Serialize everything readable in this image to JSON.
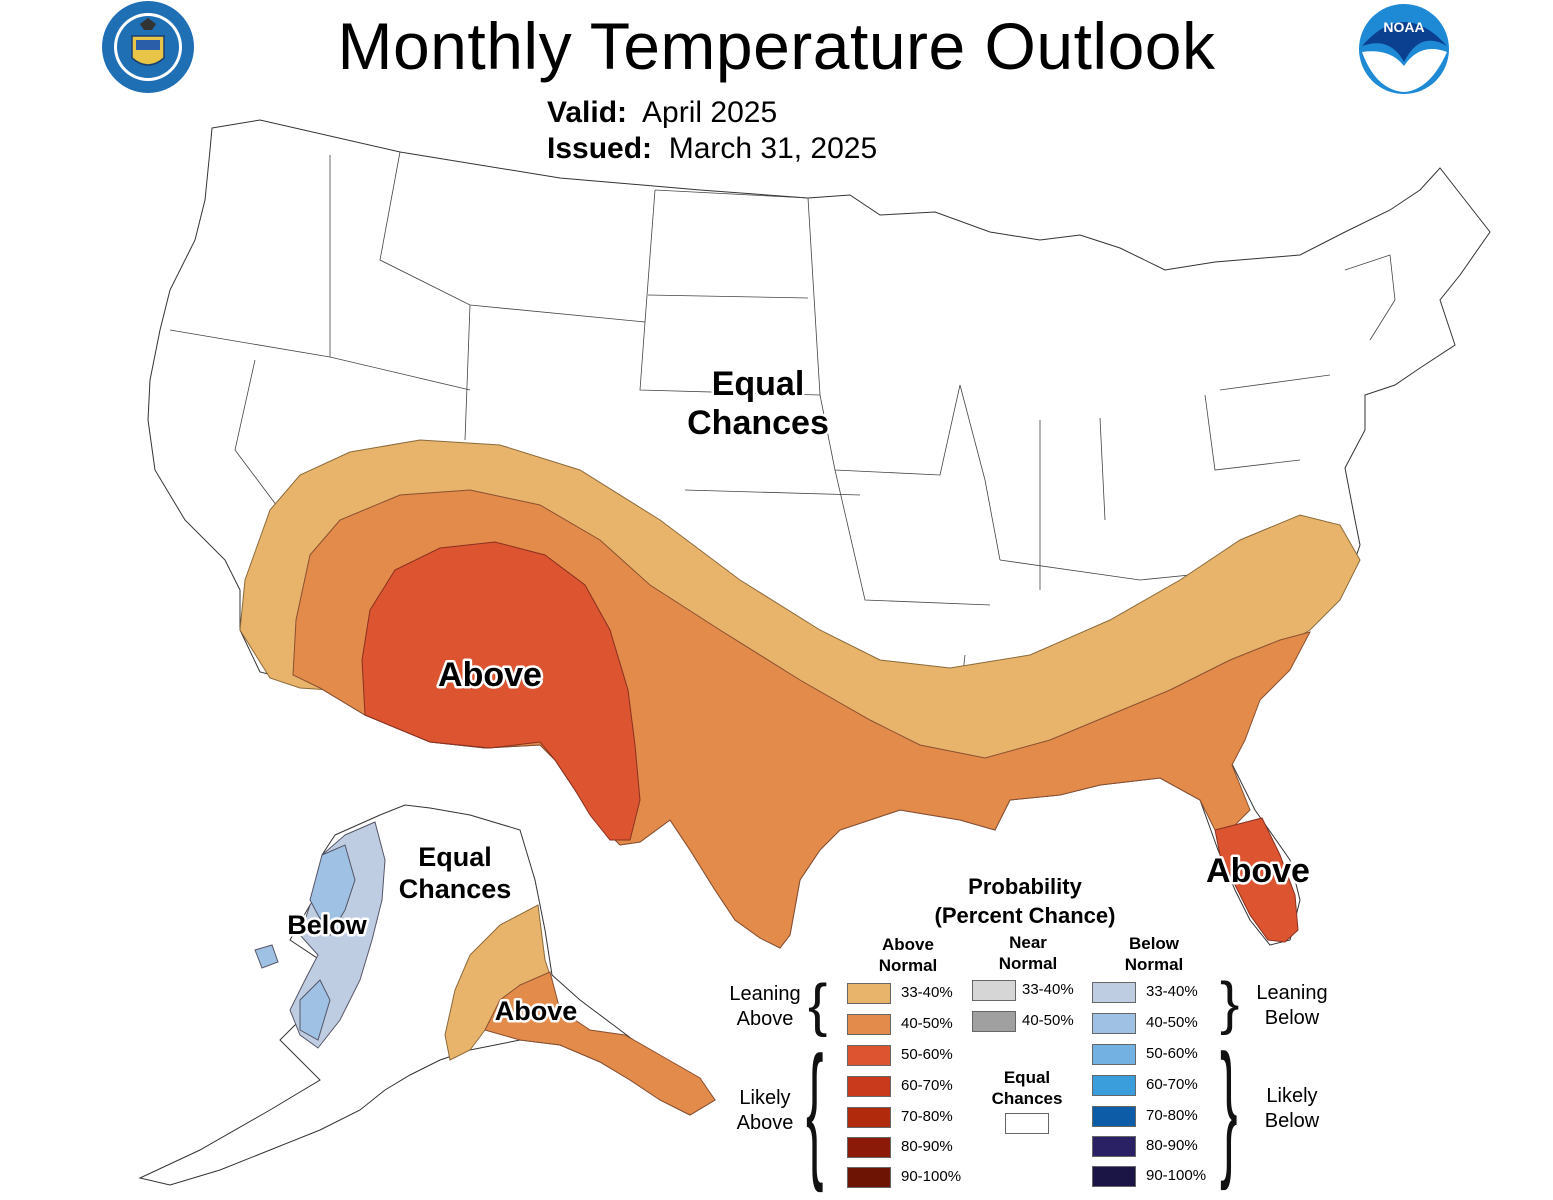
{
  "header": {
    "title": "Monthly Temperature Outlook",
    "valid_label": "Valid:",
    "valid_value": "April 2025",
    "issued_label": "Issued:",
    "issued_value": "March 31, 2025",
    "left_logo": "department-of-commerce-seal",
    "left_logo_text": "DEPARTMENT OF COMMERCE · UNITED STATES OF AMERICA",
    "right_logo": "noaa-logo",
    "right_logo_text": "NOAA"
  },
  "map_labels": {
    "conus_equal": "Equal",
    "conus_chances": "Chances",
    "southwest_above": "Above",
    "florida_above": "Above",
    "alaska_equal": "Equal",
    "alaska_chances": "Chances",
    "alaska_below": "Below",
    "alaska_above": "Above"
  },
  "categories": {
    "above_33_40": "#e8b46c",
    "above_40_50": "#e38b4a",
    "above_50_60": "#dc5530",
    "below_33_40": "#bfcde3",
    "below_40_50": "#9ec1e4",
    "equal_chances": "#ffffff"
  },
  "legend": {
    "title_line1": "Probability",
    "title_line2": "(Percent Chance)",
    "above_header_1": "Above",
    "above_header_2": "Normal",
    "near_header_1": "Near",
    "near_header_2": "Normal",
    "below_header_1": "Below",
    "below_header_2": "Normal",
    "leaning_above_1": "Leaning",
    "leaning_above_2": "Above",
    "likely_above_1": "Likely",
    "likely_above_2": "Above",
    "leaning_below_1": "Leaning",
    "leaning_below_2": "Below",
    "likely_below_1": "Likely",
    "likely_below_2": "Below",
    "equal_1": "Equal",
    "equal_2": "Chances",
    "above": [
      {
        "label": "33-40%",
        "color": "#e8b46c"
      },
      {
        "label": "40-50%",
        "color": "#e38b4a"
      },
      {
        "label": "50-60%",
        "color": "#dc5530"
      },
      {
        "label": "60-70%",
        "color": "#c9391c"
      },
      {
        "label": "70-80%",
        "color": "#b22a0c"
      },
      {
        "label": "80-90%",
        "color": "#8b1a08"
      },
      {
        "label": "90-100%",
        "color": "#6e1405"
      }
    ],
    "near": [
      {
        "label": "33-40%",
        "color": "#d6d6d6"
      },
      {
        "label": "40-50%",
        "color": "#a0a0a0"
      }
    ],
    "below": [
      {
        "label": "33-40%",
        "color": "#bfcde3"
      },
      {
        "label": "40-50%",
        "color": "#9ec1e4"
      },
      {
        "label": "50-60%",
        "color": "#73b1e3"
      },
      {
        "label": "60-70%",
        "color": "#3a9ddc"
      },
      {
        "label": "70-80%",
        "color": "#0c5ca8"
      },
      {
        "label": "80-90%",
        "color": "#2a2164"
      },
      {
        "label": "90-100%",
        "color": "#1a1545"
      }
    ]
  }
}
